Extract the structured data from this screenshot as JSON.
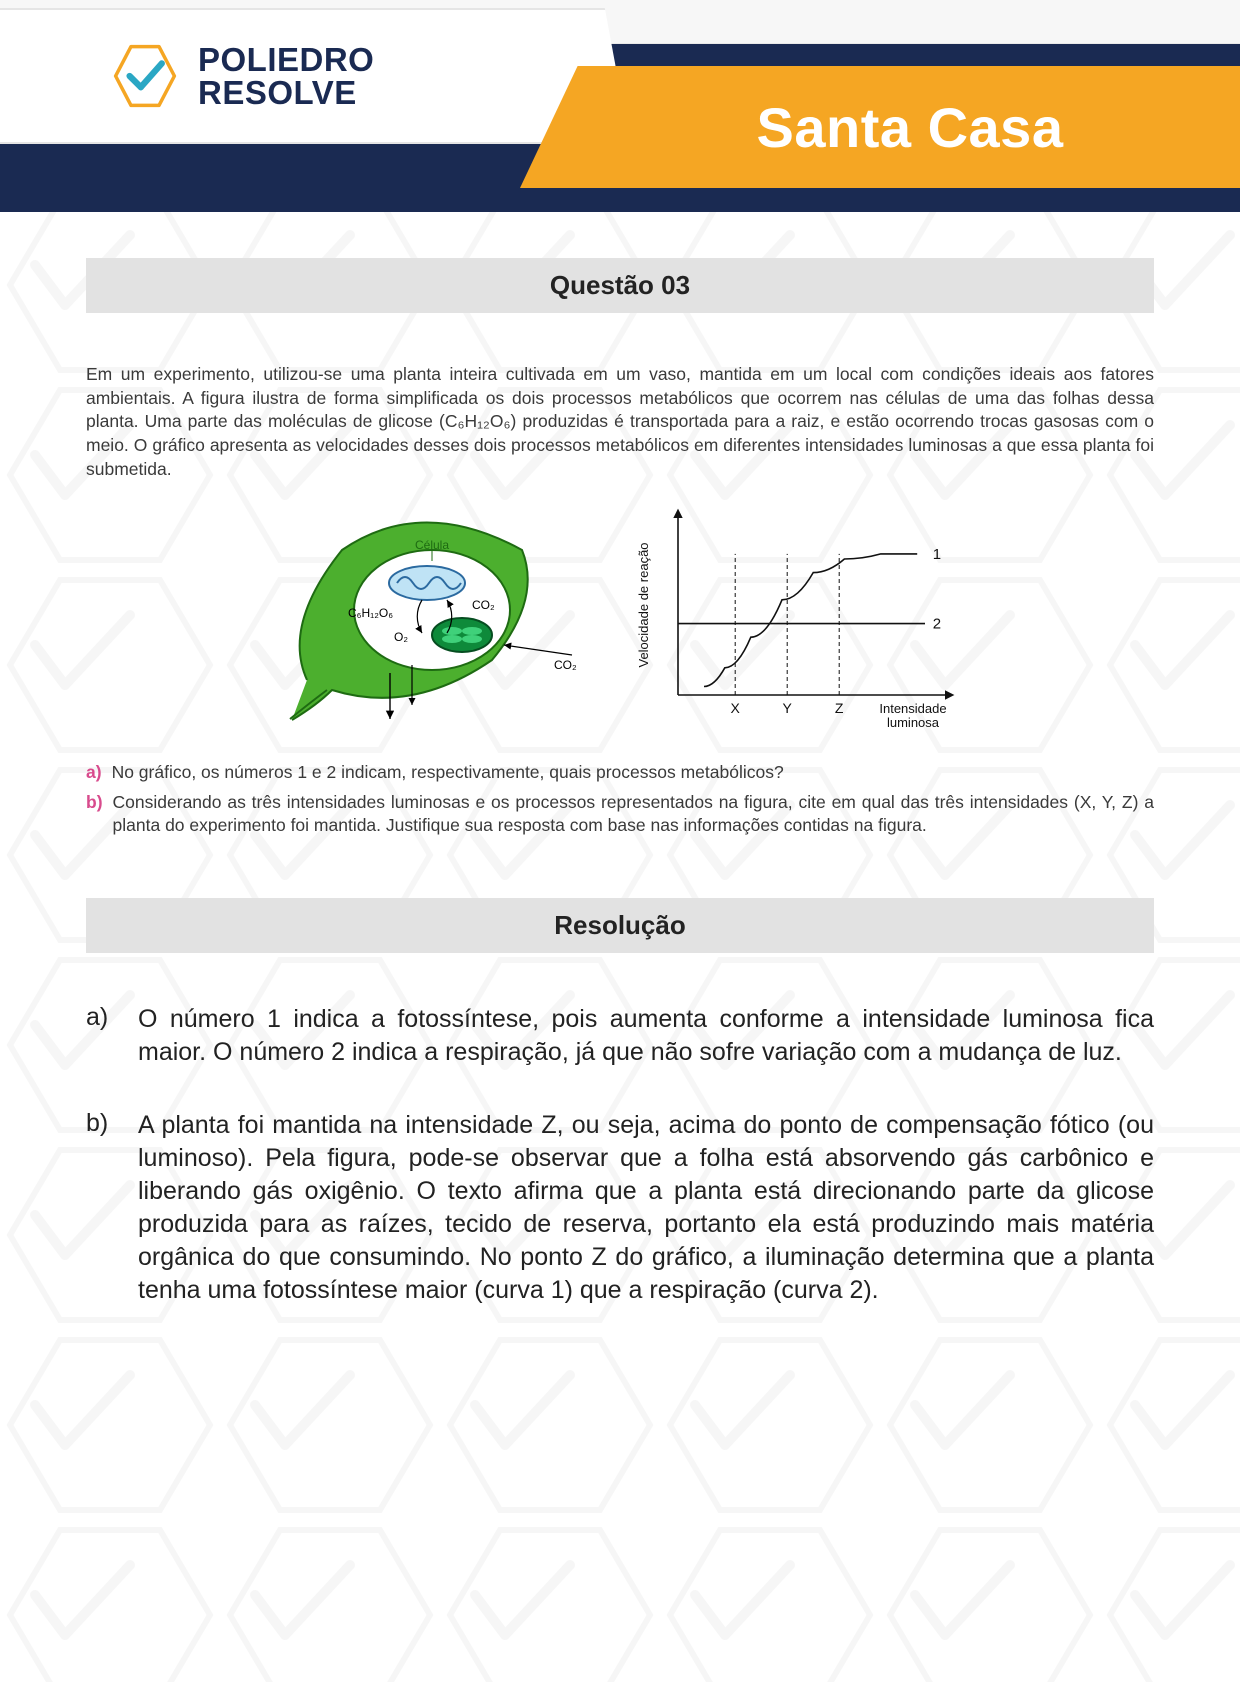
{
  "header": {
    "logo_line1": "POLIEDRO",
    "logo_line2": "RESOLVE",
    "exam_title": "Santa Casa",
    "colors": {
      "navy": "#1a2a52",
      "orange": "#f5a623",
      "logo_check": "#2aa7c4",
      "logo_hex_stroke": "#f5a623"
    }
  },
  "question": {
    "heading": "Questão 03",
    "body_html": "Em um experimento, utilizou-se uma planta inteira cultivada em um vaso, mantida em um local com condições ideais aos fatores ambientais. A figura ilustra de forma simplificada os dois processos metabólicos que ocorrem nas células de uma das folhas dessa planta. Uma parte das moléculas de glicose (C₆H₁₂O₆) produzidas é transportada para a raiz, e estão ocorrendo trocas gasosas com o meio. O gráfico apresenta as velocidades desses dois processos metabólicos em diferentes intensidades luminosas a que essa planta foi submetida.",
    "sub_a_marker": "a)",
    "sub_a": "No gráfico, os números 1 e 2 indicam, respectivamente, quais processos metabólicos?",
    "sub_b_marker": "b)",
    "sub_b": "Considerando as três intensidades luminosas e os processos representados na figura, cite em qual das três intensidades (X, Y, Z) a planta do experimento foi mantida. Justifique sua resposta com base nas informações contidas na figura."
  },
  "leaf_diagram": {
    "leaf_fill": "#4caf2e",
    "leaf_stroke": "#1e6b12",
    "cell_fill": "#ffffff",
    "mito_fill": "#bfe3f5",
    "mito_stroke": "#2b6aa0",
    "chloro_fill": "#0e8a3a",
    "chloro_inner": "#3fd17a",
    "labels": {
      "cell": "Célula",
      "glucose": "C₆H₁₂O₆",
      "o2": "O₂",
      "co2_in": "CO₂",
      "co2_out": "CO₂"
    }
  },
  "chart": {
    "type": "line",
    "axis_color": "#111111",
    "grid_dash": "4 3",
    "y_label": "Velocidade de reação",
    "x_label": "Intensidade luminosa",
    "x_ticks": [
      "X",
      "Y",
      "Z"
    ],
    "x_tick_positions": [
      0.22,
      0.42,
      0.62
    ],
    "curve1_label": "1",
    "curve2_label": "2",
    "curve2_y": 0.42,
    "curve1_points": [
      [
        0.1,
        0.05
      ],
      [
        0.18,
        0.16
      ],
      [
        0.28,
        0.34
      ],
      [
        0.4,
        0.56
      ],
      [
        0.52,
        0.72
      ],
      [
        0.64,
        0.8
      ],
      [
        0.78,
        0.83
      ],
      [
        0.92,
        0.83
      ]
    ],
    "line_width": 1.6
  },
  "resolution": {
    "heading": "Resolução",
    "a_marker": "a)",
    "a_text": "O número 1 indica a fotossíntese, pois aumenta conforme a intensidade luminosa fica maior. O número 2 indica a respiração, já que não sofre variação com a mudança de luz.",
    "b_marker": "b)",
    "b_text": "A planta foi mantida na intensidade Z, ou seja, acima do ponto de compensação fótico (ou luminoso). Pela figura, pode-se observar que a folha está absorvendo gás carbônico e liberando gás oxigênio. O texto afirma que a planta está direcionando parte da glicose produzida para as raízes, tecido de reserva, portanto ela está produzindo mais matéria orgânica do que consumindo. No ponto Z do gráfico, a iluminação determina que a planta tenha uma fotossíntese maior (curva 1) que a respiração (curva 2)."
  }
}
